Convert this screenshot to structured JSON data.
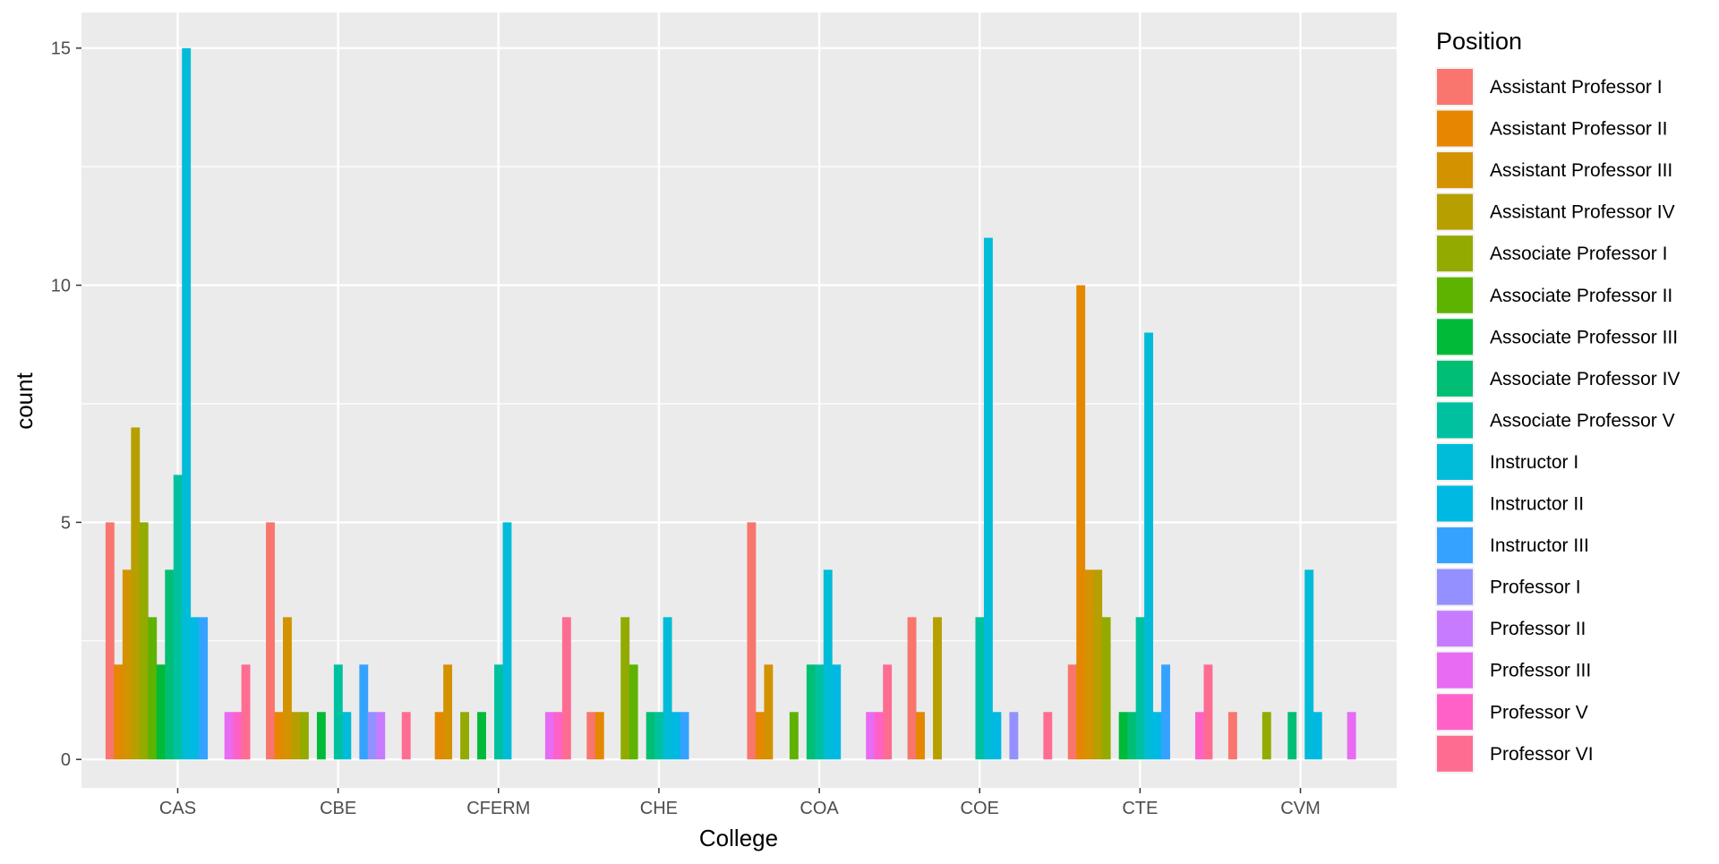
{
  "chart_data": {
    "type": "bar",
    "xlabel": "College",
    "ylabel": "count",
    "ylim": [
      -0.6,
      15.75
    ],
    "yticks": [
      0,
      5,
      10,
      15
    ],
    "grid": true,
    "legend_placement": "right",
    "legend_title": "Position",
    "categories": [
      "CAS",
      "CBE",
      "CFERM",
      "CHE",
      "COA",
      "COE",
      "CTE",
      "CVM"
    ],
    "series": [
      {
        "name": "Assistant Professor I",
        "color": "#F8766D",
        "values": [
          5,
          5,
          0,
          1,
          5,
          3,
          2,
          1
        ]
      },
      {
        "name": "Assistant Professor II",
        "color": "#E58700",
        "values": [
          2,
          1,
          1,
          1,
          1,
          1,
          10,
          0
        ]
      },
      {
        "name": "Assistant Professor III",
        "color": "#D39200",
        "values": [
          4,
          3,
          2,
          0,
          2,
          0,
          4,
          0
        ]
      },
      {
        "name": "Assistant Professor IV",
        "color": "#B79F00",
        "values": [
          7,
          1,
          0,
          0,
          0,
          3,
          4,
          0
        ]
      },
      {
        "name": "Associate Professor I",
        "color": "#93AA00",
        "values": [
          5,
          1,
          1,
          3,
          0,
          0,
          3,
          1
        ]
      },
      {
        "name": "Associate Professor II",
        "color": "#5EB300",
        "values": [
          3,
          0,
          0,
          2,
          1,
          0,
          0,
          0
        ]
      },
      {
        "name": "Associate Professor III",
        "color": "#00BA38",
        "values": [
          2,
          1,
          1,
          0,
          0,
          0,
          1,
          0
        ]
      },
      {
        "name": "Associate Professor IV",
        "color": "#00BF74",
        "values": [
          4,
          0,
          0,
          1,
          2,
          0,
          1,
          1
        ]
      },
      {
        "name": "Associate Professor V",
        "color": "#00C19F",
        "values": [
          6,
          2,
          2,
          1,
          2,
          3,
          3,
          0
        ]
      },
      {
        "name": "Instructor I",
        "color": "#00BCD8",
        "values": [
          15,
          1,
          5,
          3,
          4,
          11,
          9,
          4
        ]
      },
      {
        "name": "Instructor II",
        "color": "#00B9E3",
        "values": [
          3,
          0,
          0,
          1,
          2,
          1,
          1,
          1
        ]
      },
      {
        "name": "Instructor III",
        "color": "#35A2FF",
        "values": [
          3,
          2,
          0,
          1,
          0,
          0,
          2,
          0
        ]
      },
      {
        "name": "Professor I",
        "color": "#9590FF",
        "values": [
          0,
          1,
          0,
          0,
          0,
          1,
          0,
          0
        ]
      },
      {
        "name": "Professor II",
        "color": "#C77CFF",
        "values": [
          0,
          1,
          0,
          0,
          0,
          0,
          0,
          0
        ]
      },
      {
        "name": "Professor III",
        "color": "#E76BF3",
        "values": [
          1,
          0,
          1,
          0,
          1,
          0,
          0,
          1
        ]
      },
      {
        "name": "Professor V",
        "color": "#FF61C9",
        "values": [
          1,
          0,
          1,
          0,
          1,
          0,
          1,
          0
        ]
      },
      {
        "name": "Professor VI",
        "color": "#FF6C91",
        "values": [
          2,
          1,
          3,
          0,
          2,
          1,
          2,
          0
        ]
      }
    ]
  }
}
